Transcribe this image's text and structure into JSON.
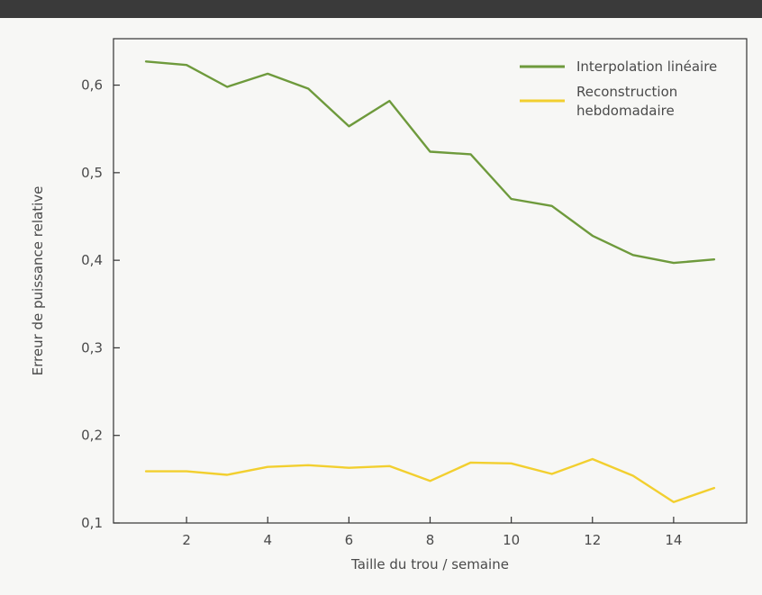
{
  "chart_data": {
    "type": "line",
    "title": "",
    "xlabel": "Taille du trou / semaine",
    "ylabel": "Erreur de puissance relative",
    "xlim": [
      0.2,
      15.8
    ],
    "ylim": [
      0.1,
      0.653
    ],
    "x_ticks": [
      2,
      4,
      6,
      8,
      10,
      12,
      14
    ],
    "x_tick_labels": [
      "2",
      "4",
      "6",
      "8",
      "10",
      "12",
      "14"
    ],
    "y_ticks": [
      0.1,
      0.2,
      0.3,
      0.4,
      0.5,
      0.6
    ],
    "y_tick_labels": [
      "0,1",
      "0,2",
      "0,3",
      "0,4",
      "0,5",
      "0,6"
    ],
    "grid": false,
    "legend_position": "top-right",
    "x": [
      1,
      2,
      3,
      4,
      5,
      6,
      7,
      8,
      9,
      10,
      11,
      12,
      13,
      14,
      15
    ],
    "series": [
      {
        "name": "Interpolation linéaire",
        "legend_lines": [
          "Interpolation linéaire"
        ],
        "color": "#6e9a3c",
        "values": [
          0.627,
          0.623,
          0.598,
          0.613,
          0.596,
          0.553,
          0.582,
          0.524,
          0.521,
          0.47,
          0.462,
          0.428,
          0.406,
          0.397,
          0.401
        ]
      },
      {
        "name": "Reconstruction hebdomadaire",
        "legend_lines": [
          "Reconstruction",
          "hebdomadaire"
        ],
        "color": "#f2cf2f",
        "values": [
          0.159,
          0.159,
          0.155,
          0.164,
          0.166,
          0.163,
          0.165,
          0.148,
          0.169,
          0.168,
          0.156,
          0.173,
          0.154,
          0.124,
          0.14
        ]
      }
    ]
  }
}
